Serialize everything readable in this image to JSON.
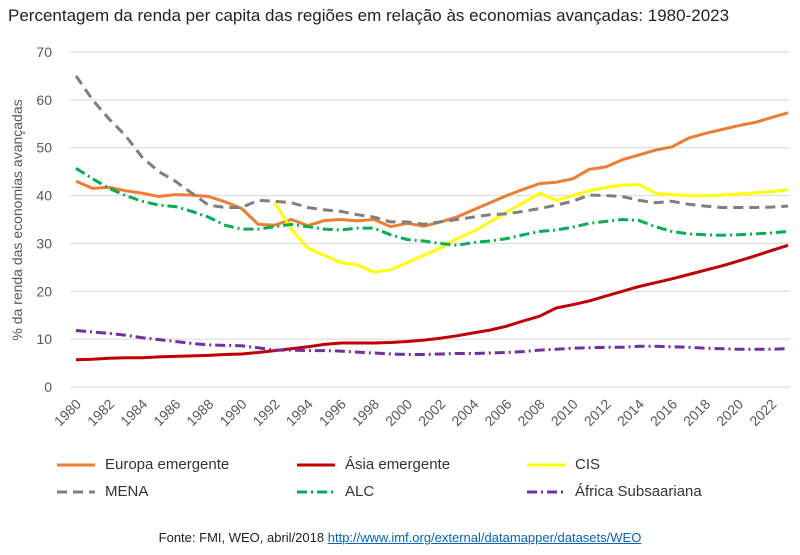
{
  "chart_data": {
    "type": "line",
    "title": "Percentagem da renda per capita das regiões em relação às economias avançadas: 1980-2023",
    "ylabel": "% da renda das economias avançadas",
    "xlabel": "",
    "ylim": [
      0,
      70
    ],
    "yticks": [
      0,
      10,
      20,
      30,
      40,
      50,
      60,
      70
    ],
    "xticks": [
      "1980",
      "1982",
      "1984",
      "1986",
      "1988",
      "1990",
      "1992",
      "1994",
      "1996",
      "1998",
      "2000",
      "2002",
      "2004",
      "2006",
      "2008",
      "2010",
      "2012",
      "2014",
      "2016",
      "2018",
      "2020",
      "2022"
    ],
    "grid": true,
    "legend_position": "bottom",
    "series": [
      {
        "name": "Europa emergente",
        "color": "#ed7d31",
        "dash": "solid",
        "x": [
          1980,
          1981,
          1982,
          1983,
          1984,
          1985,
          1986,
          1987,
          1988,
          1989,
          1990,
          1991,
          1992,
          1993,
          1994,
          1995,
          1996,
          1997,
          1998,
          1999,
          2000,
          2001,
          2002,
          2003,
          2004,
          2005,
          2006,
          2007,
          2008,
          2009,
          2010,
          2011,
          2012,
          2013,
          2014,
          2015,
          2016,
          2017,
          2018,
          2019,
          2020,
          2021,
          2022,
          2023
        ],
        "values": [
          43,
          41.5,
          41.7,
          41,
          40.5,
          39.8,
          40.2,
          40.1,
          39.8,
          38.7,
          37.3,
          34,
          33.8,
          35,
          33.7,
          34.8,
          35,
          34.7,
          35,
          33.5,
          34.2,
          33.6,
          34.5,
          35.5,
          37,
          38.5,
          40,
          41.3,
          42.5,
          42.8,
          43.5,
          45.5,
          46,
          47.5,
          48.5,
          49.5,
          50.2,
          52,
          53,
          53.8,
          54.6,
          55.3,
          56.3,
          57.3
        ]
      },
      {
        "name": "Ásia emergente",
        "color": "#c00000",
        "dash": "solid",
        "x": [
          1980,
          1981,
          1982,
          1983,
          1984,
          1985,
          1986,
          1987,
          1988,
          1989,
          1990,
          1991,
          1992,
          1993,
          1994,
          1995,
          1996,
          1997,
          1998,
          1999,
          2000,
          2001,
          2002,
          2003,
          2004,
          2005,
          2006,
          2007,
          2008,
          2009,
          2010,
          2011,
          2012,
          2013,
          2014,
          2015,
          2016,
          2017,
          2018,
          2019,
          2020,
          2021,
          2022,
          2023
        ],
        "values": [
          5.7,
          5.8,
          6,
          6.1,
          6.1,
          6.3,
          6.4,
          6.5,
          6.6,
          6.8,
          6.9,
          7.2,
          7.6,
          8,
          8.4,
          8.9,
          9.2,
          9.2,
          9.2,
          9.3,
          9.5,
          9.8,
          10.2,
          10.7,
          11.3,
          11.9,
          12.7,
          13.8,
          14.8,
          16.5,
          17.2,
          18,
          19,
          20,
          21,
          21.8,
          22.6,
          23.5,
          24.4,
          25.3,
          26.3,
          27.4,
          28.5,
          29.6
        ]
      },
      {
        "name": "CIS",
        "color": "#ffff00",
        "dash": "solid",
        "x": [
          1992,
          1993,
          1994,
          1995,
          1996,
          1997,
          1998,
          1999,
          2000,
          2001,
          2002,
          2003,
          2004,
          2005,
          2006,
          2007,
          2008,
          2009,
          2010,
          2011,
          2012,
          2013,
          2014,
          2015,
          2016,
          2017,
          2018,
          2019,
          2020,
          2021,
          2022,
          2023
        ],
        "values": [
          38.5,
          33,
          29,
          27.5,
          26,
          25.5,
          24,
          24.5,
          26,
          27.5,
          29,
          31,
          32.5,
          34.5,
          36.5,
          38.5,
          40.5,
          39,
          40,
          41,
          41.7,
          42.2,
          42.3,
          40.5,
          40.2,
          40,
          40,
          40.1,
          40.3,
          40.6,
          40.8,
          41.2
        ]
      },
      {
        "name": "MENA",
        "color": "#7f7f7f",
        "dash": "10,6",
        "x": [
          1980,
          1981,
          1982,
          1983,
          1984,
          1985,
          1986,
          1987,
          1988,
          1989,
          1990,
          1991,
          1992,
          1993,
          1994,
          1995,
          1996,
          1997,
          1998,
          1999,
          2000,
          2001,
          2002,
          2003,
          2004,
          2005,
          2006,
          2007,
          2008,
          2009,
          2010,
          2011,
          2012,
          2013,
          2014,
          2015,
          2016,
          2017,
          2018,
          2019,
          2020,
          2021,
          2022,
          2023
        ],
        "values": [
          65,
          60,
          56,
          52.5,
          48,
          45,
          43,
          40.5,
          38,
          37.5,
          37.5,
          39,
          38.8,
          38.5,
          37.5,
          37,
          36.7,
          36,
          35.5,
          34.5,
          34.5,
          34,
          34.5,
          35,
          35.5,
          36,
          36.2,
          36.7,
          37.3,
          38,
          38.8,
          40.1,
          40,
          39.8,
          39,
          38.5,
          38.8,
          38.2,
          37.8,
          37.5,
          37.5,
          37.5,
          37.6,
          37.8
        ]
      },
      {
        "name": "ALC",
        "color": "#00b050",
        "dash": "10,4,2,4",
        "x": [
          1980,
          1981,
          1982,
          1983,
          1984,
          1985,
          1986,
          1987,
          1988,
          1989,
          1990,
          1991,
          1992,
          1993,
          1994,
          1995,
          1996,
          1997,
          1998,
          1999,
          2000,
          2001,
          2002,
          2003,
          2004,
          2005,
          2006,
          2007,
          2008,
          2009,
          2010,
          2011,
          2012,
          2013,
          2014,
          2015,
          2016,
          2017,
          2018,
          2019,
          2020,
          2021,
          2022,
          2023
        ],
        "values": [
          45.7,
          43.5,
          41.5,
          40,
          38.8,
          38,
          37.7,
          36.7,
          35.5,
          33.8,
          33,
          33,
          33.5,
          34,
          33.5,
          33,
          32.8,
          33.2,
          33.2,
          31.8,
          30.8,
          30.5,
          30,
          29.6,
          30.2,
          30.5,
          31,
          31.8,
          32.5,
          32.8,
          33.4,
          34.2,
          34.6,
          35,
          34.8,
          33.5,
          32.5,
          32,
          31.8,
          31.7,
          31.8,
          32,
          32.2,
          32.5
        ]
      },
      {
        "name": "África Subsaariana",
        "color": "#7030a0",
        "dash": "10,4,2,4",
        "x": [
          1980,
          1981,
          1982,
          1983,
          1984,
          1985,
          1986,
          1987,
          1988,
          1989,
          1990,
          1991,
          1992,
          1993,
          1994,
          1995,
          1996,
          1997,
          1998,
          1999,
          2000,
          2001,
          2002,
          2003,
          2004,
          2005,
          2006,
          2007,
          2008,
          2009,
          2010,
          2011,
          2012,
          2013,
          2014,
          2015,
          2016,
          2017,
          2018,
          2019,
          2020,
          2021,
          2022,
          2023
        ],
        "values": [
          11.8,
          11.5,
          11.2,
          10.8,
          10.3,
          9.9,
          9.5,
          9.1,
          8.8,
          8.7,
          8.6,
          8.2,
          7.7,
          7.7,
          7.6,
          7.6,
          7.5,
          7.3,
          7.1,
          6.9,
          6.8,
          6.8,
          6.9,
          7,
          7,
          7.1,
          7.2,
          7.4,
          7.7,
          7.9,
          8.1,
          8.2,
          8.3,
          8.3,
          8.5,
          8.5,
          8.4,
          8.3,
          8.1,
          8,
          7.9,
          7.9,
          7.9,
          8
        ]
      }
    ]
  },
  "source": {
    "prefix": "Fonte: FMI, WEO, abril/2018",
    "link": "http://www.imf.org/external/datamapper/datasets/WEO"
  }
}
